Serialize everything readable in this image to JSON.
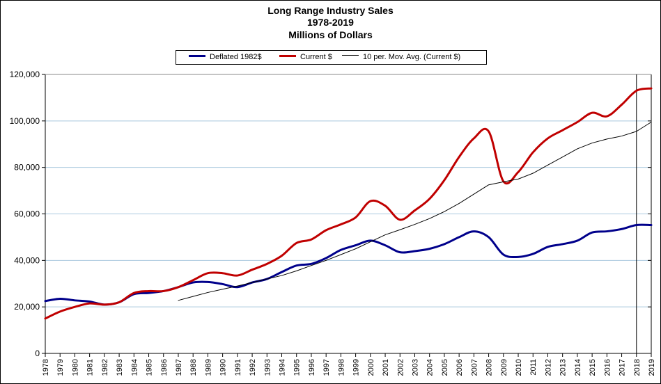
{
  "chart_data": {
    "type": "line",
    "title": "Long Range Industry Sales",
    "subtitle1": "1978-2019",
    "subtitle2": "Millions of Dollars",
    "categories": [
      "1978",
      "1979",
      "1980",
      "1981",
      "1982",
      "1983",
      "1984",
      "1985",
      "1986",
      "1987",
      "1988",
      "1989",
      "1990",
      "1991",
      "1992",
      "1993",
      "1994",
      "1995",
      "1996",
      "1997",
      "1998",
      "1999",
      "2000",
      "2001",
      "2002",
      "2003",
      "2004",
      "2005",
      "2006",
      "2007",
      "2008",
      "2009",
      "2010",
      "2011",
      "2012",
      "2013",
      "2014",
      "2015",
      "2016",
      "2017",
      "2018",
      "2019"
    ],
    "ylim": [
      0,
      120000
    ],
    "yticks": [
      0,
      20000,
      40000,
      60000,
      80000,
      100000,
      120000
    ],
    "ytick_labels": [
      "0",
      "20,000",
      "40,000",
      "60,000",
      "80,000",
      "100,000",
      "120,000"
    ],
    "grid": true,
    "legend_position": "top",
    "series": [
      {
        "name": "Deflated 1982$",
        "color": "#00008B",
        "values": [
          22500,
          23500,
          22800,
          22300,
          21000,
          22000,
          25500,
          26000,
          26800,
          28500,
          30500,
          30700,
          29800,
          28500,
          30500,
          32000,
          35000,
          37800,
          38500,
          41000,
          44500,
          46500,
          48500,
          46500,
          43500,
          44000,
          45000,
          47000,
          50000,
          52500,
          50000,
          42500,
          41500,
          42800,
          45800,
          47000,
          48500,
          52000,
          52500,
          53500,
          55200,
          55200
        ]
      },
      {
        "name": "Current $",
        "color": "#C00000",
        "values": [
          15000,
          18000,
          20000,
          21500,
          21000,
          22000,
          26000,
          26800,
          26800,
          28500,
          31500,
          34500,
          34500,
          33500,
          36000,
          38500,
          42000,
          47500,
          49000,
          53000,
          55500,
          58500,
          65500,
          63500,
          57500,
          61500,
          66500,
          74500,
          84500,
          92500,
          95500,
          74000,
          78000,
          86500,
          92500,
          96000,
          99500,
          103500,
          102000,
          107000,
          113000,
          114000
        ]
      },
      {
        "name": "10 per. Mov. Avg. (Current $)",
        "color": "#000000",
        "values": [
          null,
          null,
          null,
          null,
          null,
          null,
          null,
          null,
          null,
          22800,
          24500,
          26200,
          27600,
          29000,
          30500,
          32000,
          33500,
          35500,
          37800,
          40000,
          42500,
          45000,
          48000,
          51000,
          53200,
          55500,
          58000,
          61000,
          64500,
          68500,
          72500,
          73800,
          75000,
          77500,
          81000,
          84500,
          88000,
          90500,
          92200,
          93500,
          95500,
          99500
        ]
      }
    ]
  }
}
